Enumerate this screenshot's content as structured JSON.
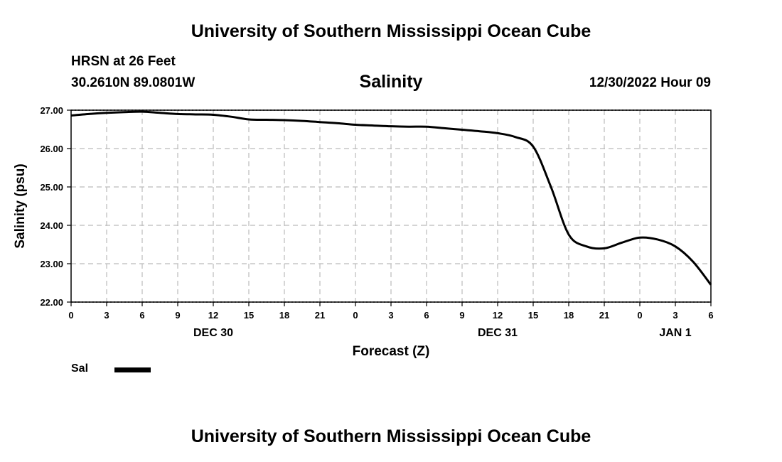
{
  "header": {
    "title": "University of Southern Mississippi Ocean Cube",
    "station": "HRSN at 26 Feet",
    "coords": "30.2610N  89.0801W",
    "subtitle": "Salinity",
    "datetime": "12/30/2022 Hour 09"
  },
  "footer": {
    "title": "University of Southern Mississippi Ocean Cube"
  },
  "legend": {
    "label": "Sal",
    "color": "#000000"
  },
  "chart_data": {
    "type": "line",
    "title": "Salinity",
    "xlabel": "Forecast (Z)",
    "ylabel": "Salinity (psu)",
    "xlim": [
      0,
      54
    ],
    "ylim": [
      22.0,
      27.0
    ],
    "grid": true,
    "yticks": [
      "22.00",
      "23.00",
      "24.00",
      "25.00",
      "26.00",
      "27.00"
    ],
    "xticks": [
      {
        "x": 0,
        "label": "0"
      },
      {
        "x": 3,
        "label": "3"
      },
      {
        "x": 6,
        "label": "6"
      },
      {
        "x": 9,
        "label": "9"
      },
      {
        "x": 12,
        "label": "12"
      },
      {
        "x": 15,
        "label": "15"
      },
      {
        "x": 18,
        "label": "18"
      },
      {
        "x": 21,
        "label": "21"
      },
      {
        "x": 24,
        "label": "0"
      },
      {
        "x": 27,
        "label": "3"
      },
      {
        "x": 30,
        "label": "6"
      },
      {
        "x": 33,
        "label": "9"
      },
      {
        "x": 36,
        "label": "12"
      },
      {
        "x": 39,
        "label": "15"
      },
      {
        "x": 42,
        "label": "18"
      },
      {
        "x": 45,
        "label": "21"
      },
      {
        "x": 48,
        "label": "0"
      },
      {
        "x": 51,
        "label": "3"
      },
      {
        "x": 54,
        "label": "6"
      }
    ],
    "day_labels": [
      {
        "x": 12,
        "label": "DEC 30"
      },
      {
        "x": 36,
        "label": "DEC 31"
      },
      {
        "x": 51,
        "label": "JAN 1"
      }
    ],
    "series": [
      {
        "name": "Sal",
        "x": [
          0,
          1.5,
          3,
          4.5,
          6,
          7.5,
          9,
          10.5,
          12,
          13.5,
          15,
          16.5,
          18,
          19.5,
          21,
          22.5,
          24,
          25.5,
          27,
          28.5,
          30,
          31.5,
          33,
          34.5,
          36,
          37.5,
          39,
          40.5,
          42,
          43.5,
          45,
          46.5,
          48,
          49.5,
          51,
          52.5,
          54
        ],
        "values": [
          26.86,
          26.9,
          26.93,
          26.95,
          26.96,
          26.93,
          26.9,
          26.89,
          26.88,
          26.83,
          26.76,
          26.75,
          26.74,
          26.72,
          26.69,
          26.66,
          26.62,
          26.6,
          26.58,
          26.57,
          26.57,
          26.53,
          26.49,
          26.45,
          26.4,
          26.3,
          26.05,
          25.0,
          23.76,
          23.45,
          23.4,
          23.55,
          23.68,
          23.63,
          23.45,
          23.05,
          22.45
        ]
      }
    ]
  }
}
